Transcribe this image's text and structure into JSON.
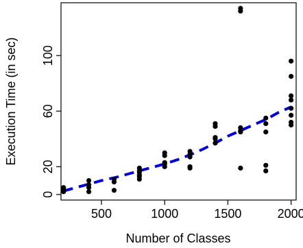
{
  "chart_data": {
    "type": "scatter",
    "title": "",
    "xlabel": "Number of Classes",
    "ylabel": "Execution Time (in sec)",
    "xlim": [
      180,
      2040
    ],
    "ylim": [
      -4,
      138
    ],
    "x_ticks": [
      500,
      1000,
      1500,
      2000
    ],
    "y_ticks": [
      0,
      20,
      60,
      100
    ],
    "grid": false,
    "legend": "none",
    "colors": {
      "points": "#000000",
      "trend": "#0000dd",
      "axes": "#000000"
    },
    "series": [
      {
        "kind": "points",
        "x": [
          200,
          200,
          200,
          200,
          200,
          400,
          400,
          400,
          400,
          600,
          600,
          600,
          800,
          800,
          800,
          800,
          800,
          800,
          1000,
          1000,
          1000,
          1000,
          1000,
          1200,
          1200,
          1200,
          1200,
          1200,
          1400,
          1400,
          1400,
          1400,
          1400,
          1600,
          1600,
          1600,
          1600,
          1600,
          1600,
          1800,
          1800,
          1800,
          1800,
          1800,
          2000,
          2000,
          2000,
          2000,
          2000,
          2000,
          2000,
          2000
        ],
        "y": [
          2,
          3,
          3,
          4,
          5,
          2,
          5,
          7,
          10,
          3,
          9,
          11,
          11,
          13,
          14,
          16,
          17,
          19,
          20,
          22,
          23,
          28,
          30,
          19,
          20,
          27,
          29,
          31,
          37,
          40,
          41,
          49,
          51,
          19,
          45,
          46,
          48,
          132,
          134,
          17,
          21,
          45,
          51,
          55,
          50,
          52,
          57,
          62,
          68,
          71,
          85,
          96
        ]
      },
      {
        "kind": "trend",
        "style": "dashed",
        "x": [
          200,
          300,
          400,
          500,
          600,
          700,
          800,
          900,
          1000,
          1100,
          1200,
          1300,
          1400,
          1500,
          1600,
          1700,
          1800,
          1900,
          2000
        ],
        "y": [
          2.5,
          5,
          7.5,
          10,
          12,
          14.5,
          17,
          19.5,
          22,
          25,
          28.5,
          32.5,
          37,
          42,
          46,
          50,
          54,
          59,
          63
        ]
      }
    ]
  }
}
